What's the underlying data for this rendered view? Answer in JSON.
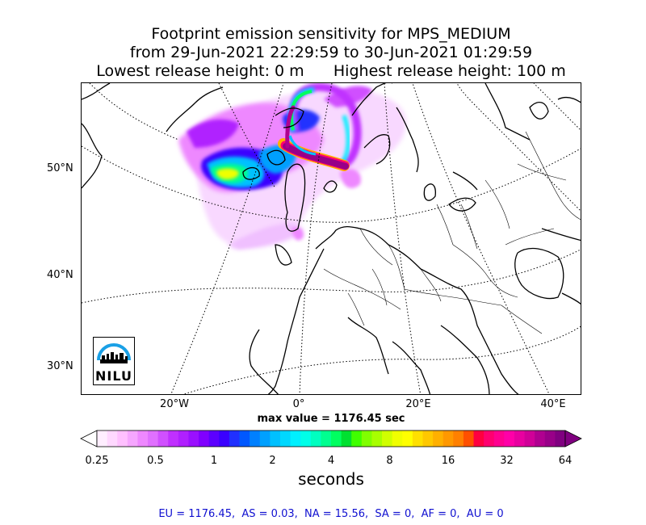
{
  "title": {
    "line1": "Footprint emission sensitivity for MPS_MEDIUM",
    "line2": "from 29-Jun-2021 22:29:59 to 30-Jun-2021 01:29:59",
    "line3": "Lowest release height: 0 m      Highest release height: 100 m"
  },
  "map": {
    "lat_labels": [
      "50°N",
      "40°N",
      "30°N"
    ],
    "lon_labels": [
      "20°W",
      "0°",
      "20°E",
      "40°E"
    ],
    "logo_text": "NILU",
    "max_value": "max value = 1176.45 sec"
  },
  "colorbar": {
    "tick_labels": [
      "0.25",
      "0.5",
      "1",
      "2",
      "4",
      "8",
      "16",
      "32",
      "64"
    ],
    "label": "seconds",
    "colors": [
      "#ffeeff",
      "#ffd8ff",
      "#ffc0ff",
      "#f6a6ff",
      "#ee88ff",
      "#e070ff",
      "#d050ff",
      "#c030ff",
      "#b020ff",
      "#9a10ff",
      "#8000ff",
      "#5c00ff",
      "#3a00ff",
      "#2030ff",
      "#0058ff",
      "#0080ff",
      "#00a0ff",
      "#00c0ff",
      "#00d8ff",
      "#00f0ff",
      "#00ffe8",
      "#00ffc0",
      "#00ff90",
      "#00ff60",
      "#00e030",
      "#40ff00",
      "#80ff00",
      "#a8ff00",
      "#d0ff00",
      "#f0ff00",
      "#ffff00",
      "#ffe000",
      "#ffc800",
      "#ffb000",
      "#ff9800",
      "#ff8000",
      "#ff5000",
      "#ff0040",
      "#ff0070",
      "#ff0090",
      "#ff00a8",
      "#e800a0",
      "#d00098",
      "#b00090",
      "#980088",
      "#800080"
    ]
  },
  "region_stats": "EU = 1176.45,  AS = 0.03,  NA = 15.56,  SA = 0,  AF = 0,  AU = 0"
}
